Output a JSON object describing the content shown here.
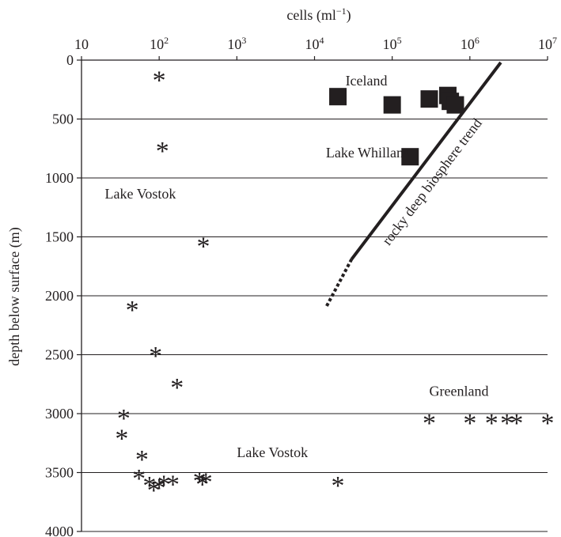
{
  "chart_data": {
    "type": "scatter",
    "title": "",
    "xlabel": "cells (ml",
    "xlabel_sup": "−1",
    "xlabel_suffix": ")",
    "ylabel": "depth below surface (m)",
    "x_scale": "log",
    "xlim": [
      10,
      10000000
    ],
    "ylim": [
      0,
      4000
    ],
    "y_inverted": true,
    "x_axis_position": "top",
    "grid": "horizontal",
    "legend": "none",
    "x_ticks": [
      {
        "value": 10,
        "base": "10",
        "exp": ""
      },
      {
        "value": 100,
        "base": "10",
        "exp": "2"
      },
      {
        "value": 1000,
        "base": "10",
        "exp": "3"
      },
      {
        "value": 10000,
        "base": "10",
        "exp": "4"
      },
      {
        "value": 100000,
        "base": "10",
        "exp": "5"
      },
      {
        "value": 1000000,
        "base": "10",
        "exp": "6"
      },
      {
        "value": 10000000,
        "base": "10",
        "exp": "7"
      }
    ],
    "y_ticks": [
      {
        "value": 0,
        "label": "0"
      },
      {
        "value": 500,
        "label": "500"
      },
      {
        "value": 1000,
        "label": "1000"
      },
      {
        "value": 1500,
        "label": "1500"
      },
      {
        "value": 2000,
        "label": "2000"
      },
      {
        "value": 2500,
        "label": "2500"
      },
      {
        "value": 3000,
        "label": "3000"
      },
      {
        "value": 3500,
        "label": "3500"
      },
      {
        "value": 4000,
        "label": "4000"
      }
    ],
    "series": [
      {
        "marker": "asterisk",
        "points": [
          {
            "x": 100,
            "y": 150
          },
          {
            "x": 110,
            "y": 750
          },
          {
            "x": 370,
            "y": 1560
          },
          {
            "x": 45,
            "y": 2100
          },
          {
            "x": 90,
            "y": 2490
          },
          {
            "x": 170,
            "y": 2760
          },
          {
            "x": 35,
            "y": 3020
          },
          {
            "x": 33,
            "y": 3190
          },
          {
            "x": 60,
            "y": 3370
          },
          {
            "x": 55,
            "y": 3530
          },
          {
            "x": 75,
            "y": 3590
          },
          {
            "x": 85,
            "y": 3630
          },
          {
            "x": 100,
            "y": 3610
          },
          {
            "x": 115,
            "y": 3580
          },
          {
            "x": 150,
            "y": 3580
          },
          {
            "x": 330,
            "y": 3550
          },
          {
            "x": 360,
            "y": 3580
          },
          {
            "x": 400,
            "y": 3560
          },
          {
            "x": 20000,
            "y": 3590
          },
          {
            "x": 300000,
            "y": 3060
          },
          {
            "x": 1000000,
            "y": 3060
          },
          {
            "x": 1900000,
            "y": 3060
          },
          {
            "x": 3000000,
            "y": 3060
          },
          {
            "x": 4000000,
            "y": 3060
          },
          {
            "x": 10000000,
            "y": 3060
          }
        ]
      },
      {
        "marker": "square",
        "points": [
          {
            "x": 20000,
            "y": 310
          },
          {
            "x": 100000,
            "y": 380
          },
          {
            "x": 300000,
            "y": 330
          },
          {
            "x": 520000,
            "y": 300
          },
          {
            "x": 560000,
            "y": 350
          },
          {
            "x": 650000,
            "y": 380
          },
          {
            "x": 170000,
            "y": 820
          }
        ]
      }
    ],
    "trend_line": {
      "label": "rocky deep biosphere trend",
      "solid": [
        {
          "x": 2500000,
          "y": 20
        },
        {
          "x": 30000,
          "y": 1690
        }
      ],
      "dotted": [
        {
          "x": 30000,
          "y": 1690
        },
        {
          "x": 14000,
          "y": 2100
        }
      ]
    },
    "annotations": [
      {
        "text": "Iceland",
        "x": 25000,
        "y": 215
      },
      {
        "text": "Lake Whillans",
        "x": 14000,
        "y": 825
      },
      {
        "text": "Lake Vostok",
        "x": 20,
        "y": 1175
      },
      {
        "text": "Greenland",
        "x": 300000,
        "y": 2850
      },
      {
        "text": "Lake Vostok",
        "x": 1000,
        "y": 3370
      }
    ]
  }
}
